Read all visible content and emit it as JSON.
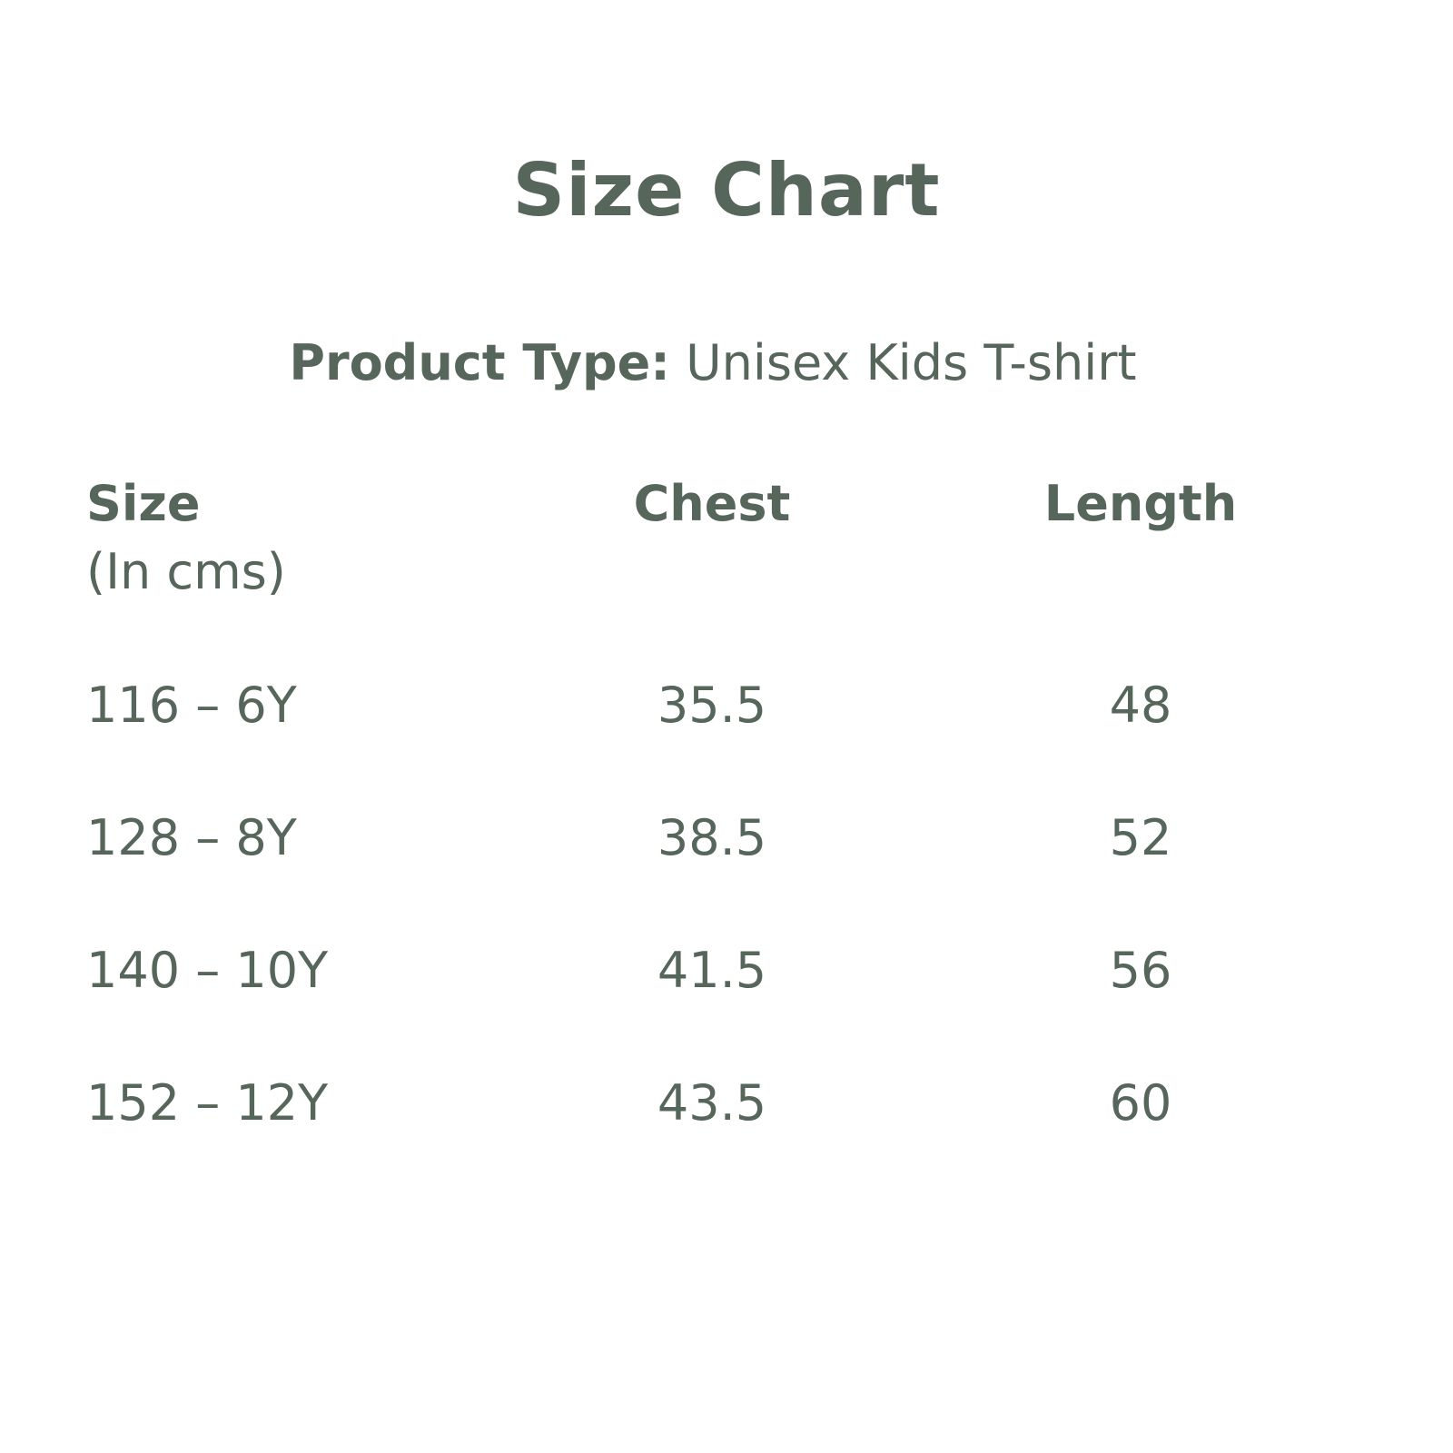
{
  "title": "Size Chart",
  "product_type": {
    "label": "Product Type:",
    "value": "Unisex Kids T-shirt"
  },
  "table": {
    "headers": {
      "size": "Size",
      "size_unit": "(In cms)",
      "chest": "Chest",
      "length": "Length"
    },
    "rows": [
      {
        "size": "116 – 6Y",
        "chest": "35.5",
        "length": "48"
      },
      {
        "size": "128 – 8Y",
        "chest": "38.5",
        "length": "52"
      },
      {
        "size": "140 – 10Y",
        "chest": "41.5",
        "length": "56"
      },
      {
        "size": "152 – 12Y",
        "chest": "43.5",
        "length": "60"
      }
    ]
  },
  "colors": {
    "text": "#56665a",
    "background": "#ffffff"
  }
}
